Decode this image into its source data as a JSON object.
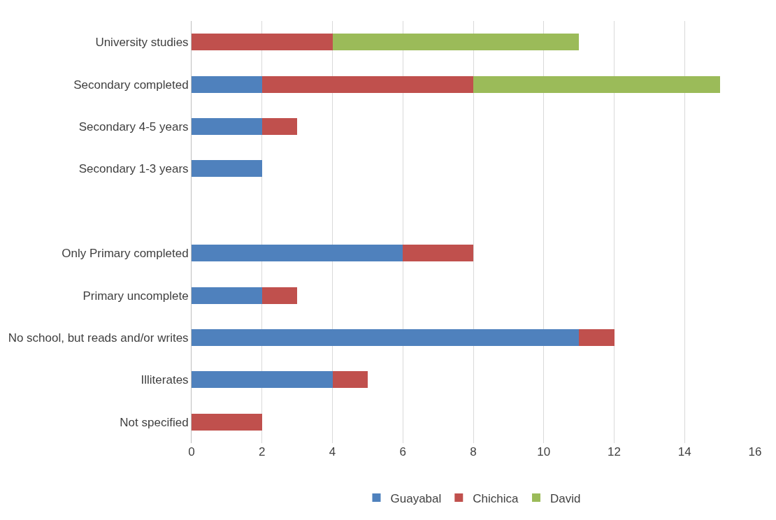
{
  "chart_data": {
    "type": "bar",
    "orientation": "horizontal",
    "stacked": true,
    "categories": [
      "University studies",
      "Secondary completed",
      "Secondary 4-5 years",
      "Secondary 1-3 years",
      null,
      "Only Primary completed",
      "Primary uncomplete",
      "No school, but reads and/or writes",
      "Illiterates",
      "Not specified"
    ],
    "series": [
      {
        "name": "Guayabal",
        "color": "#4f81bd",
        "values": [
          null,
          2,
          2,
          2,
          null,
          6,
          2,
          11,
          4,
          null
        ]
      },
      {
        "name": "Chichica",
        "color": "#c0504d",
        "values": [
          4,
          6,
          1,
          null,
          null,
          2,
          1,
          1,
          1,
          2
        ]
      },
      {
        "name": "David",
        "color": "#9bbb59",
        "values": [
          7,
          7,
          null,
          null,
          null,
          null,
          null,
          null,
          null,
          null
        ]
      }
    ],
    "xlim": [
      0,
      16
    ],
    "xticks": [
      0,
      2,
      4,
      6,
      8,
      10,
      12,
      14,
      16
    ],
    "grid": "x",
    "legend": "bottom"
  }
}
